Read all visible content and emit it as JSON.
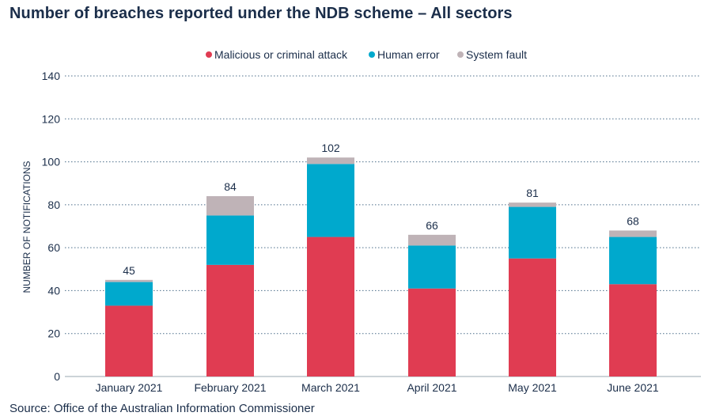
{
  "title": "Number of breaches reported under the NDB scheme – All sectors",
  "source": "Source: Office of the Australian Information Commissioner",
  "colors": {
    "malicious": "#e03c52",
    "human": "#00a9cd",
    "system": "#bfb3b7",
    "text": "#1b2e4a",
    "grid": "#4c6e8a"
  },
  "chart_data": {
    "type": "bar",
    "stacked": true,
    "title": "Number of breaches reported under the NDB scheme – All sectors",
    "xlabel": "",
    "ylabel": "NUMBER OF NOTIFICATIONS",
    "ylim": [
      0,
      140
    ],
    "yticks": [
      0,
      20,
      40,
      60,
      80,
      100,
      120,
      140
    ],
    "grid": true,
    "legend_position": "top",
    "categories": [
      "January 2021",
      "February 2021",
      "March 2021",
      "April 2021",
      "May 2021",
      "June 2021"
    ],
    "series": [
      {
        "name": "Malicious or criminal attack",
        "color": "#e03c52",
        "values": [
          33,
          52,
          65,
          41,
          55,
          43
        ]
      },
      {
        "name": "Human error",
        "color": "#00a9cd",
        "values": [
          11,
          23,
          34,
          20,
          24,
          22
        ]
      },
      {
        "name": "System fault",
        "color": "#bfb3b7",
        "values": [
          1,
          9,
          3,
          5,
          2,
          3
        ]
      }
    ],
    "totals": [
      "45",
      "84",
      "102",
      "66",
      "81",
      "68"
    ]
  }
}
